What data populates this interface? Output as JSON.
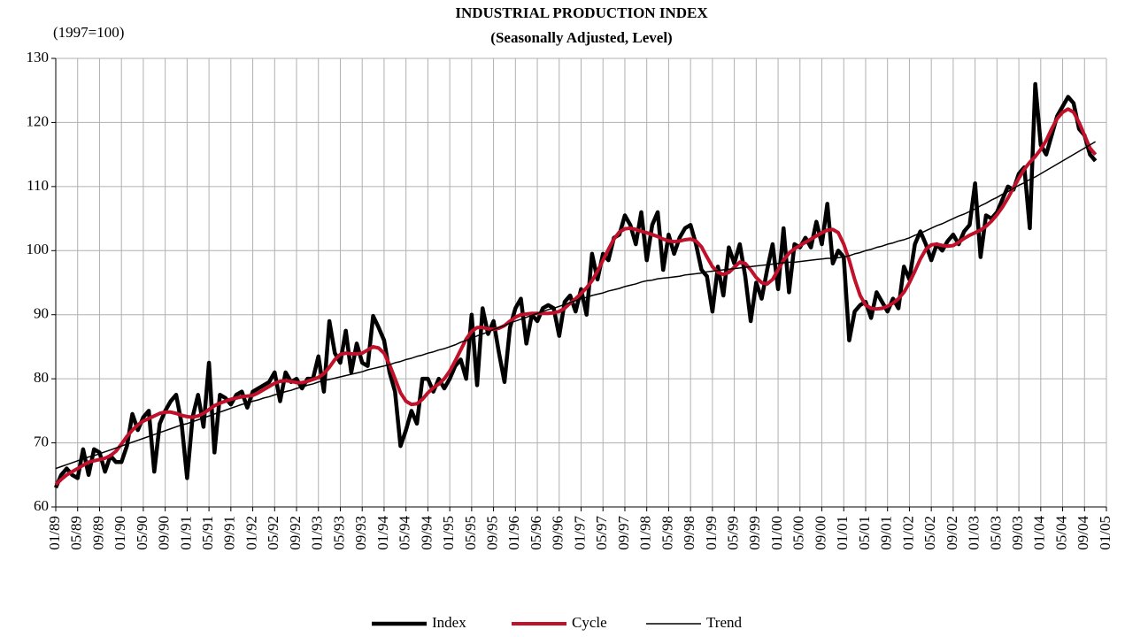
{
  "chart_data": {
    "type": "line",
    "title": "INDUSTRIAL PRODUCTION INDEX",
    "subtitle": "(Seasonally Adjusted, Level)",
    "y_label": "(1997=100)",
    "ylim": [
      60,
      130
    ],
    "yticks": [
      60,
      70,
      80,
      90,
      100,
      110,
      120,
      130
    ],
    "grid": true,
    "legend": "bottom",
    "categories": [
      "01/89",
      null,
      null,
      null,
      "05/89",
      null,
      null,
      null,
      "09/89",
      null,
      null,
      null,
      "01/90",
      null,
      null,
      null,
      "05/90",
      null,
      null,
      null,
      "09/90",
      null,
      null,
      null,
      "01/91",
      null,
      null,
      null,
      "05/91",
      null,
      null,
      null,
      "09/91",
      null,
      null,
      null,
      "01/92",
      null,
      null,
      null,
      "05/92",
      null,
      null,
      null,
      "09/92",
      null,
      null,
      null,
      "01/93",
      null,
      null,
      null,
      "05/93",
      null,
      null,
      null,
      "09/93",
      null,
      null,
      null,
      "01/94",
      null,
      null,
      null,
      "05/94",
      null,
      null,
      null,
      "09/94",
      null,
      null,
      null,
      "01/95",
      null,
      null,
      null,
      "05/95",
      null,
      null,
      null,
      "09/95",
      null,
      null,
      null,
      "01/96",
      null,
      null,
      null,
      "05/96",
      null,
      null,
      null,
      "09/96",
      null,
      null,
      null,
      "01/97",
      null,
      null,
      null,
      "05/97",
      null,
      null,
      null,
      "09/97",
      null,
      null,
      null,
      "01/98",
      null,
      null,
      null,
      "05/98",
      null,
      null,
      null,
      "09/98",
      null,
      null,
      null,
      "01/99",
      null,
      null,
      null,
      "05/99",
      null,
      null,
      null,
      "09/99",
      null,
      null,
      null,
      "01/00",
      null,
      null,
      null,
      "05/00",
      null,
      null,
      null,
      "09/00",
      null,
      null,
      null,
      "01/01",
      null,
      null,
      null,
      "05/01",
      null,
      null,
      null,
      "09/01",
      null,
      null,
      null,
      "01/02",
      null,
      null,
      null,
      "05/02",
      null,
      null,
      null,
      "09/02",
      null,
      null,
      null,
      "01/03",
      null,
      null,
      null,
      "05/03",
      null,
      null,
      null,
      "09/03",
      null,
      null,
      null,
      "01/04",
      null,
      null,
      null,
      "05/04",
      null,
      null,
      null,
      "09/04",
      null,
      null,
      null,
      "01/05"
    ],
    "series": [
      {
        "name": "Index",
        "color": "#000000",
        "values": [
          63,
          65,
          66,
          65,
          64.5,
          69,
          65,
          69,
          68.5,
          65.5,
          68,
          67,
          67,
          69.5,
          74.5,
          72,
          74,
          75,
          65.5,
          73,
          75,
          76.5,
          77.5,
          73,
          64.5,
          74,
          77.5,
          72.5,
          82.5,
          68.5,
          77.5,
          77,
          76,
          77.5,
          78,
          75.5,
          78,
          78.5,
          79,
          79.5,
          81,
          76.5,
          81,
          79.5,
          80,
          78.5,
          80,
          80,
          83.5,
          78,
          89,
          84,
          82.5,
          87.5,
          81,
          85.5,
          82.5,
          82,
          89.8,
          88,
          86,
          81,
          78,
          69.5,
          72,
          75,
          73,
          80,
          80,
          78,
          80,
          78.5,
          80,
          82,
          83,
          80,
          90,
          79,
          91,
          87,
          89,
          84,
          79.5,
          88,
          91,
          92.5,
          85.5,
          90,
          89,
          91,
          91.5,
          91,
          86.7,
          92,
          93,
          90.5,
          94,
          90,
          99.5,
          95.5,
          99.5,
          98.5,
          102,
          102.5,
          105.5,
          104,
          101,
          106,
          98.5,
          104,
          106,
          97,
          102.5,
          99.5,
          102,
          103.5,
          104,
          101,
          97,
          96,
          90.5,
          97.5,
          93,
          100.5,
          98,
          101,
          96,
          89,
          95,
          92.5,
          97,
          101,
          94,
          103.5,
          93.5,
          101,
          100.5,
          102,
          100.5,
          104.5,
          101,
          107.3,
          98,
          100,
          99,
          86,
          90.5,
          91.5,
          92,
          89.5,
          93.5,
          92,
          90.5,
          92.5,
          91,
          97.5,
          95.5,
          101,
          103,
          101,
          98.5,
          101,
          100,
          101.5,
          102.5,
          101,
          103,
          104,
          110.5,
          99,
          105.5,
          105,
          106,
          108,
          110,
          109.5,
          112,
          113,
          103.5,
          126,
          116.5,
          115,
          118,
          121,
          122.5,
          124,
          123,
          119,
          118,
          115,
          114,
          null,
          null
        ]
      },
      {
        "name": "Cycle",
        "color": "#c0102a",
        "values": [
          63.5,
          64.3,
          65,
          65.5,
          66,
          66.5,
          67,
          67.2,
          67.4,
          67.6,
          68,
          68.7,
          69.8,
          71,
          72,
          72.8,
          73.4,
          73.8,
          74.2,
          74.6,
          74.8,
          74.8,
          74.6,
          74.3,
          74.1,
          74,
          74.2,
          74.6,
          75.2,
          75.8,
          76.2,
          76.5,
          76.8,
          77,
          77.2,
          77.3,
          77.4,
          77.8,
          78.3,
          78.8,
          79.3,
          79.6,
          79.7,
          79.6,
          79.4,
          79.4,
          79.6,
          79.9,
          80.2,
          80.8,
          81.8,
          83,
          83.8,
          84,
          83.9,
          83.9,
          84,
          84.5,
          85,
          84.8,
          84,
          82.2,
          80,
          77.8,
          76.5,
          76,
          76.1,
          76.8,
          77.8,
          78.6,
          79.2,
          80,
          81.2,
          82.8,
          84.5,
          86.2,
          87.4,
          88,
          88,
          87.8,
          87.7,
          87.9,
          88.3,
          89,
          89.6,
          90,
          90.1,
          90.2,
          90.2,
          90.2,
          90.2,
          90.3,
          90.5,
          91,
          91.8,
          92.5,
          93.3,
          94.2,
          95.3,
          96.8,
          98.5,
          100.2,
          101.8,
          102.9,
          103.4,
          103.5,
          103.3,
          103,
          102.8,
          102.5,
          102.2,
          101.8,
          101.5,
          101.4,
          101.5,
          101.7,
          101.8,
          101.5,
          100.6,
          99,
          97.5,
          96.6,
          96.3,
          96.6,
          97.4,
          98.2,
          98,
          97,
          95.8,
          95,
          94.8,
          95.5,
          97,
          98.5,
          99.6,
          100.3,
          100.8,
          101.3,
          101.8,
          102.3,
          102.8,
          103.2,
          103.3,
          102.8,
          101,
          98.5,
          95.5,
          93,
          91.5,
          91,
          90.9,
          91,
          91.3,
          91.8,
          92.5,
          93.5,
          95,
          96.8,
          98.7,
          100.2,
          100.9,
          101,
          100.8,
          100.7,
          100.8,
          101.3,
          101.9,
          102.4,
          102.8,
          103.2,
          103.8,
          104.6,
          105.6,
          106.8,
          108.2,
          109.8,
          111.3,
          112.7,
          113.8,
          114.7,
          115.8,
          117.2,
          119,
          120.6,
          121.6,
          122.1,
          121.6,
          120,
          118,
          116,
          115,
          null,
          null
        ]
      },
      {
        "name": "Trend",
        "color": "#000000",
        "values": [
          66,
          66.3,
          66.6,
          66.9,
          67.2,
          67.5,
          67.8,
          68,
          68.3,
          68.6,
          68.9,
          69.2,
          69.5,
          69.8,
          70.1,
          70.4,
          70.7,
          71,
          71.3,
          71.6,
          71.9,
          72.2,
          72.5,
          72.8,
          73,
          73.3,
          73.6,
          73.9,
          74.2,
          74.5,
          74.8,
          75.1,
          75.4,
          75.7,
          76,
          76.2,
          76.5,
          76.7,
          77,
          77.2,
          77.5,
          77.7,
          78,
          78.2,
          78.5,
          78.7,
          79,
          79.2,
          79.5,
          79.7,
          79.9,
          80.1,
          80.3,
          80.5,
          80.7,
          80.9,
          81.1,
          81.4,
          81.6,
          81.8,
          82,
          82.2,
          82.5,
          82.7,
          83,
          83.2,
          83.5,
          83.7,
          84,
          84.2,
          84.5,
          84.7,
          85,
          85.3,
          85.7,
          86,
          86.3,
          86.7,
          87,
          87.3,
          87.7,
          88,
          88.3,
          88.7,
          89,
          89.3,
          89.6,
          89.9,
          90.2,
          90.5,
          90.8,
          91,
          91.3,
          91.6,
          91.9,
          92.2,
          92.5,
          92.7,
          93,
          93.2,
          93.4,
          93.7,
          93.9,
          94.1,
          94.4,
          94.6,
          94.8,
          95.1,
          95.3,
          95.4,
          95.6,
          95.7,
          95.8,
          95.9,
          96,
          96.2,
          96.3,
          96.4,
          96.5,
          96.7,
          96.8,
          96.9,
          97,
          97.1,
          97.2,
          97.3,
          97.4,
          97.5,
          97.6,
          97.7,
          97.8,
          97.9,
          98,
          98.1,
          98.2,
          98.2,
          98.3,
          98.4,
          98.5,
          98.6,
          98.7,
          98.8,
          98.8,
          98.9,
          99,
          99.2,
          99.5,
          99.7,
          100,
          100.2,
          100.5,
          100.7,
          101,
          101.2,
          101.5,
          101.7,
          102,
          102.4,
          102.7,
          103.1,
          103.5,
          103.9,
          104.2,
          104.6,
          105,
          105.4,
          105.7,
          106.1,
          106.5,
          107,
          107.4,
          107.9,
          108.3,
          108.8,
          109.2,
          109.7,
          110.2,
          110.6,
          111.1,
          111.5,
          112,
          112.5,
          113,
          113.5,
          114,
          114.5,
          115,
          115.5,
          116,
          116.5,
          117,
          null,
          null
        ]
      }
    ]
  }
}
